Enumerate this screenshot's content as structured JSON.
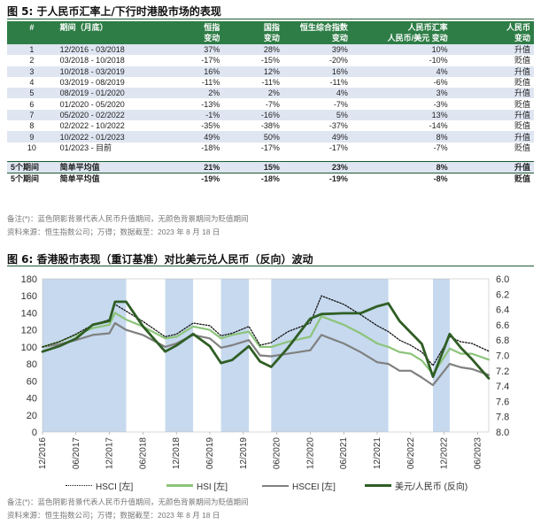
{
  "fig5": {
    "title": "图 5: 于人民币汇率上/下行时港股市场的表现",
    "headers": {
      "idx": "#",
      "period": "期间（月底）",
      "hscei_1": "恒指",
      "hscei_2": "变动",
      "hscei2_1": "国指",
      "hscei2_2": "变动",
      "comp_1": "恒生综合指数",
      "comp_2": "变动",
      "rmb_1": "人民币汇率",
      "rmb_2": "人民币/美元 变动",
      "dir_1": "人民币",
      "dir_2": "变动"
    },
    "rows": [
      {
        "idx": "1",
        "period": "12/2016 - 03/2018",
        "hsi": "37%",
        "hscei": "28%",
        "comp": "39%",
        "rmb": "10%",
        "dir": "升值"
      },
      {
        "idx": "2",
        "period": "03/2018 - 10/2018",
        "hsi": "-17%",
        "hscei": "-15%",
        "comp": "-20%",
        "rmb": "-10%",
        "dir": "贬值"
      },
      {
        "idx": "3",
        "period": "10/2018 - 03/2019",
        "hsi": "16%",
        "hscei": "12%",
        "comp": "16%",
        "rmb": "4%",
        "dir": "升值"
      },
      {
        "idx": "4",
        "period": "03/2019 - 08/2019",
        "hsi": "-11%",
        "hscei": "-11%",
        "comp": "-11%",
        "rmb": "-6%",
        "dir": "贬值"
      },
      {
        "idx": "5",
        "period": "08/2019 - 01/2020",
        "hsi": "2%",
        "hscei": "2%",
        "comp": "4%",
        "rmb": "3%",
        "dir": "升值"
      },
      {
        "idx": "6",
        "period": "01/2020 - 05/2020",
        "hsi": "-13%",
        "hscei": "-7%",
        "comp": "-7%",
        "rmb": "-3%",
        "dir": "贬值"
      },
      {
        "idx": "7",
        "period": "05/2020 - 02/2022",
        "hsi": "-1%",
        "hscei": "-16%",
        "comp": "5%",
        "rmb": "13%",
        "dir": "升值"
      },
      {
        "idx": "8",
        "period": "02/2022 - 10/2022",
        "hsi": "-35%",
        "hscei": "-38%",
        "comp": "-37%",
        "rmb": "-14%",
        "dir": "贬值"
      },
      {
        "idx": "9",
        "period": "10/2022 - 01/2023",
        "hsi": "49%",
        "hscei": "50%",
        "comp": "49%",
        "rmb": "8%",
        "dir": "升值"
      },
      {
        "idx": "10",
        "period": "01/2023 - 目前",
        "hsi": "-18%",
        "hscei": "-17%",
        "comp": "-17%",
        "rmb": "-7%",
        "dir": "贬值"
      }
    ],
    "averages": [
      {
        "idx": "5个期间",
        "period": "简单平均值",
        "hsi": "21%",
        "hscei": "15%",
        "comp": "23%",
        "rmb": "8%",
        "dir": "升值"
      },
      {
        "idx": "5个期间",
        "period": "简单平均值",
        "hsi": "-19%",
        "hscei": "-18%",
        "comp": "-19%",
        "rmb": "-8%",
        "dir": "贬值"
      }
    ],
    "note": "备注(*)：蓝色阴影背景代表人民币升值期间，无颜色背景期间为贬值期间",
    "source": "资料来源：恒生指数公司；万得；数据截至：2023 年 8 月 18 日"
  },
  "fig6": {
    "title": "图 6: 香港股市表现（重订基准）对比美元兑人民币（反向）波动",
    "note": "备注(*)：蓝色阴影背景代表人民币升值期间，无颜色背景期间为贬值期间",
    "source": "资料来源：恒生指数公司；万得；数据截至：2023 年 8 月 18 日"
  },
  "chart_data": {
    "type": "line",
    "x_ticks": [
      "12/2016",
      "06/2017",
      "12/2017",
      "06/2018",
      "12/2018",
      "06/2019",
      "12/2019",
      "06/2020",
      "12/2020",
      "06/2021",
      "12/2021",
      "06/2022",
      "12/2022",
      "06/2023"
    ],
    "ylim_left": [
      0,
      180
    ],
    "yticks_left": [
      0,
      20,
      40,
      60,
      80,
      100,
      120,
      140,
      160,
      180
    ],
    "ylim_right_inverted": [
      8.0,
      6.0
    ],
    "yticks_right": [
      "6.0",
      "6.2",
      "6.4",
      "6.6",
      "6.8",
      "7.0",
      "7.2",
      "7.4",
      "7.6",
      "7.8",
      "8.0"
    ],
    "shaded_periods_rmb_appreciation": [
      [
        "12/2016",
        "03/2018"
      ],
      [
        "10/2018",
        "03/2019"
      ],
      [
        "08/2019",
        "01/2020"
      ],
      [
        "05/2020",
        "02/2022"
      ],
      [
        "10/2022",
        "01/2023"
      ]
    ],
    "x": [
      "12/2016",
      "03/2017",
      "06/2017",
      "09/2017",
      "12/2017",
      "01/2018",
      "03/2018",
      "06/2018",
      "10/2018",
      "12/2018",
      "03/2019",
      "06/2019",
      "08/2019",
      "10/2019",
      "01/2020",
      "03/2020",
      "05/2020",
      "08/2020",
      "12/2020",
      "02/2021",
      "06/2021",
      "09/2021",
      "12/2021",
      "02/2022",
      "04/2022",
      "06/2022",
      "08/2022",
      "10/2022",
      "01/2023",
      "03/2023",
      "05/2023",
      "08/2023"
    ],
    "series": [
      {
        "name": "HSCI [左]",
        "color": "#111111",
        "style": "dotted",
        "values": [
          100,
          106,
          115,
          126,
          132,
          150,
          142,
          130,
          112,
          115,
          128,
          125,
          113,
          116,
          124,
          102,
          105,
          118,
          128,
          160,
          150,
          138,
          125,
          118,
          108,
          102,
          94,
          78,
          112,
          106,
          104,
          95
        ]
      },
      {
        "name": "HSI [左]",
        "color": "#8cc47a",
        "style": "solid",
        "values": [
          100,
          106,
          114,
          122,
          126,
          140,
          132,
          124,
          110,
          112,
          124,
          120,
          110,
          114,
          118,
          100,
          100,
          106,
          112,
          136,
          126,
          116,
          104,
          100,
          94,
          92,
          84,
          68,
          98,
          92,
          92,
          85
        ]
      },
      {
        "name": "HSCEI [左]",
        "color": "#808080",
        "style": "solid",
        "values": [
          100,
          103,
          108,
          114,
          116,
          128,
          120,
          114,
          100,
          104,
          114,
          110,
          99,
          102,
          108,
          90,
          89,
          92,
          96,
          114,
          104,
          94,
          82,
          80,
          72,
          72,
          64,
          55,
          80,
          76,
          74,
          67
        ]
      },
      {
        "name": "美元/人民币 (反向)",
        "color": "#2f5e24",
        "style": "solid-thick",
        "values": [
          6.95,
          6.88,
          6.78,
          6.6,
          6.55,
          6.3,
          6.3,
          6.62,
          6.95,
          6.87,
          6.72,
          6.88,
          7.1,
          7.06,
          6.88,
          7.08,
          7.15,
          6.9,
          6.52,
          6.46,
          6.45,
          6.45,
          6.36,
          6.32,
          6.55,
          6.7,
          6.85,
          7.28,
          6.72,
          6.9,
          7.05,
          7.3
        ]
      }
    ]
  }
}
